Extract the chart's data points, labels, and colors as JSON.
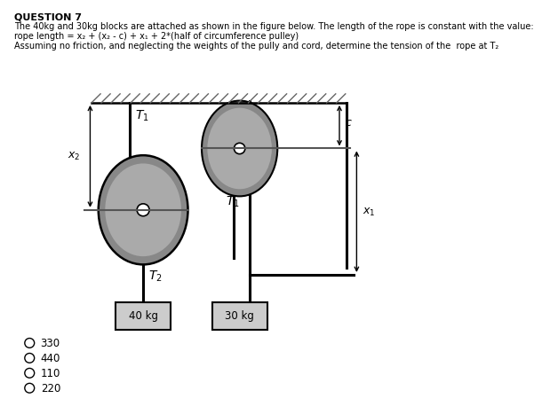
{
  "title": "QUESTION 7",
  "line1": "The 40kg and 30kg blocks are attached as shown in the figure below. The length of the rope is constant with the value:",
  "line2": "rope length = x₂ + (x₂ - c) + x₁ + 2*(half of circumference pulley)",
  "line3": "Assuming no friction, and neglecting the weights of the pully and cord, determine the tension of the  rope at T₂",
  "options": [
    "330",
    "440",
    "110",
    "220"
  ],
  "bg_color": "#ffffff",
  "pulley_dark": "#888888",
  "pulley_mid": "#aaaaaa",
  "pulley_light": "#cccccc",
  "block_color": "#cccccc",
  "hatch_color": "#666666",
  "lw_rope": 2.2,
  "lw_border": 1.5
}
